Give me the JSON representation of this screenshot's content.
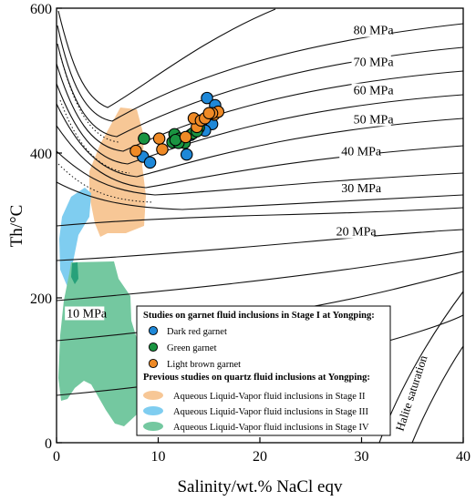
{
  "chart_data": {
    "type": "scatter",
    "xlabel": "Salinity/wt.% NaCl eqv",
    "ylabel": "Th/°C",
    "xlim": [
      0,
      40
    ],
    "ylim": [
      0,
      600
    ],
    "x_ticks": [
      "0",
      "10",
      "20",
      "30",
      "40"
    ],
    "y_ticks": [
      "0",
      "200",
      "400",
      "600"
    ],
    "isobars": [
      {
        "label": "80 MPa",
        "lx": 29.2,
        "ly": 564
      },
      {
        "label": "70 MPa",
        "lx": 29.2,
        "ly": 520
      },
      {
        "label": "60 MPa",
        "lx": 29.2,
        "ly": 481
      },
      {
        "label": "50 MPa",
        "lx": 29.2,
        "ly": 441
      },
      {
        "label": "40 MPa",
        "lx": 28.0,
        "ly": 397
      },
      {
        "label": "30 MPa",
        "lx": 28.0,
        "ly": 346
      },
      {
        "label": "20 MPa",
        "lx": 27.5,
        "ly": 286
      },
      {
        "label": "10 MPa",
        "lx": 1.0,
        "ly": 173
      }
    ],
    "halite_label": "Halite saturation",
    "legend": {
      "head1": "Studies on garnet fluid inclusions in Stage I at Yongping:",
      "head2": "Previous studies on quartz fluid inclusions at Yongping:"
    },
    "series": [
      {
        "name": "Dark red garnet",
        "color": "#1e88d8",
        "points": [
          [
            14.8,
            476
          ],
          [
            15.6,
            466
          ],
          [
            15.1,
            452
          ],
          [
            14.3,
            444
          ],
          [
            15.3,
            440
          ],
          [
            14.6,
            431
          ],
          [
            13.2,
            425
          ],
          [
            8.5,
            395
          ],
          [
            9.2,
            387
          ],
          [
            12.8,
            398
          ]
        ]
      },
      {
        "name": "Green garnet",
        "color": "#1a9441",
        "points": [
          [
            8.6,
            420
          ],
          [
            11.6,
            426
          ],
          [
            12.1,
            420
          ],
          [
            11.4,
            415
          ],
          [
            12.6,
            414
          ],
          [
            13.4,
            427
          ],
          [
            14.0,
            435
          ],
          [
            13.8,
            430
          ],
          [
            12.0,
            414
          ],
          [
            11.7,
            418
          ]
        ]
      },
      {
        "name": "Light brown garnet",
        "color": "#ef8a26",
        "points": [
          [
            7.8,
            403
          ],
          [
            10.1,
            420
          ],
          [
            10.4,
            405
          ],
          [
            12.7,
            422
          ],
          [
            13.8,
            436
          ],
          [
            13.5,
            448
          ],
          [
            14.2,
            445
          ],
          [
            14.6,
            448
          ],
          [
            15.5,
            453
          ],
          [
            15.9,
            457
          ],
          [
            15.3,
            455
          ],
          [
            15.0,
            455
          ]
        ]
      }
    ],
    "regions": [
      {
        "name": "Aqueous Liquid-Vapor fluid inclusions in Stage II",
        "color": "#f7c796"
      },
      {
        "name": "Aqueous Liquid-Vapor fluid inclusions in Stage III",
        "color": "#7fcdf0"
      },
      {
        "name": "Aqueous Liquid-Vapor fluid inclusions in Stage IV",
        "color": "#74c8a0"
      }
    ]
  }
}
